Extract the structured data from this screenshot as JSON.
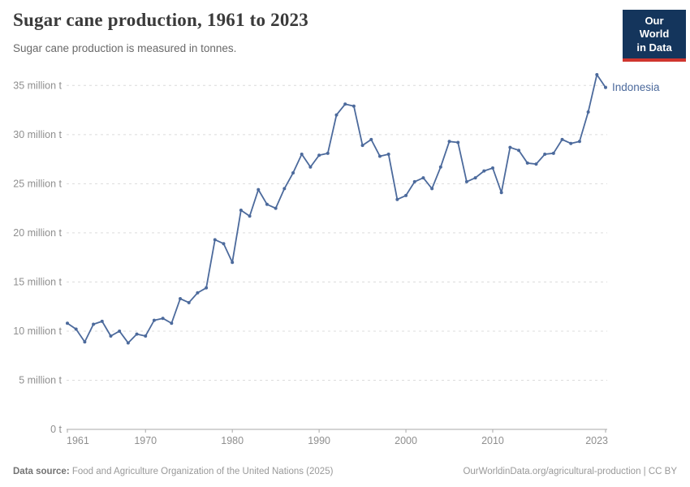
{
  "header": {
    "title": "Sugar cane production, 1961 to 2023",
    "subtitle": "Sugar cane production is measured in tonnes."
  },
  "logo": {
    "line1": "Our World",
    "line2": "in Data",
    "bg_color": "#14355c",
    "accent_color": "#cf352e"
  },
  "footer": {
    "datasource_label": "Data source:",
    "datasource_text": " Food and Agriculture Organization of the United Nations (2025)",
    "link_text": "OurWorldinData.org/agricultural-production | CC BY"
  },
  "chart_data": {
    "type": "line",
    "title": "Sugar cane production, 1961 to 2023",
    "subtitle": "Sugar cane production is measured in tonnes.",
    "entity_label": "Indonesia",
    "unit": "million tonnes",
    "line_color": "#4C6A9C",
    "grid_color": "#dcdcdc",
    "axis_color": "#a8a8a8",
    "grid": true,
    "legend_position": "line-end-label",
    "xlim": [
      1961,
      2023
    ],
    "ylim": [
      0,
      35
    ],
    "y_ticks": [
      {
        "value": 0,
        "label": "0 t"
      },
      {
        "value": 5,
        "label": "5 million t"
      },
      {
        "value": 10,
        "label": "10 million t"
      },
      {
        "value": 15,
        "label": "15 million t"
      },
      {
        "value": 20,
        "label": "20 million t"
      },
      {
        "value": 25,
        "label": "25 million t"
      },
      {
        "value": 30,
        "label": "30 million t"
      },
      {
        "value": 35,
        "label": "35 million t"
      }
    ],
    "x_ticks": [
      {
        "value": 1961,
        "label": "1961"
      },
      {
        "value": 1970,
        "label": "1970"
      },
      {
        "value": 1980,
        "label": "1980"
      },
      {
        "value": 1990,
        "label": "1990"
      },
      {
        "value": 2000,
        "label": "2000"
      },
      {
        "value": 2010,
        "label": "2010"
      },
      {
        "value": 2023,
        "label": "2023"
      }
    ],
    "series": [
      {
        "name": "Indonesia",
        "x": [
          1961,
          1962,
          1963,
          1964,
          1965,
          1966,
          1967,
          1968,
          1969,
          1970,
          1971,
          1972,
          1973,
          1974,
          1975,
          1976,
          1977,
          1978,
          1979,
          1980,
          1981,
          1982,
          1983,
          1984,
          1985,
          1986,
          1987,
          1988,
          1989,
          1990,
          1991,
          1992,
          1993,
          1994,
          1995,
          1996,
          1997,
          1998,
          1999,
          2000,
          2001,
          2002,
          2003,
          2004,
          2005,
          2006,
          2007,
          2008,
          2009,
          2010,
          2011,
          2012,
          2013,
          2014,
          2015,
          2016,
          2017,
          2018,
          2019,
          2020,
          2021,
          2022,
          2023
        ],
        "values_million_t": [
          10.8,
          10.2,
          8.9,
          10.7,
          11.0,
          9.5,
          10.0,
          8.8,
          9.7,
          9.5,
          11.1,
          11.3,
          10.8,
          13.3,
          12.9,
          13.9,
          14.4,
          19.3,
          18.9,
          17.0,
          22.3,
          21.7,
          24.4,
          22.9,
          22.5,
          24.5,
          26.1,
          28.0,
          26.7,
          27.9,
          28.1,
          32.0,
          33.1,
          32.9,
          28.9,
          29.5,
          27.8,
          28.0,
          23.4,
          23.8,
          25.2,
          25.6,
          24.5,
          26.7,
          29.3,
          29.2,
          25.2,
          25.6,
          26.3,
          26.6,
          24.1,
          28.7,
          28.4,
          27.1,
          27.0,
          28.0,
          28.1,
          29.5,
          29.1,
          29.3,
          32.3,
          36.1,
          34.8
        ]
      }
    ]
  }
}
